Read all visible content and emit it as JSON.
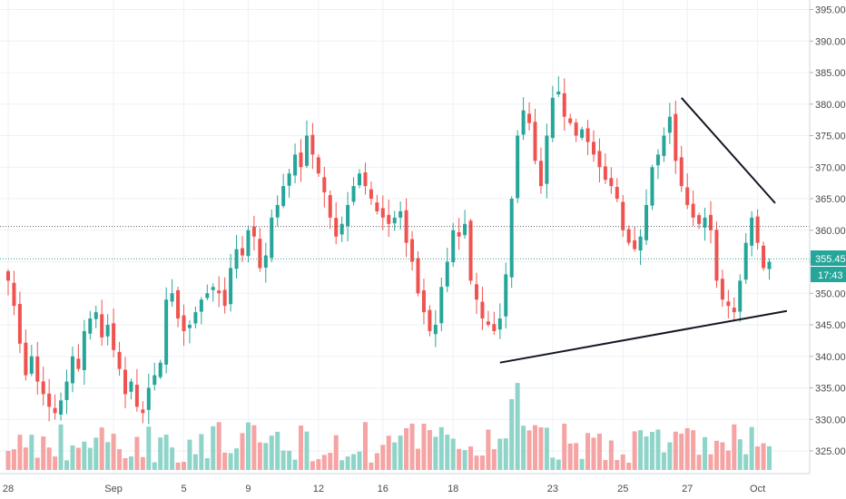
{
  "chart_data": {
    "type": "candlestick",
    "x_tick_labels": [
      "28",
      "Sep",
      "5",
      "9",
      "12",
      "16",
      "18",
      "23",
      "25",
      "27",
      "Oct"
    ],
    "y_ticks": [
      325,
      330,
      335,
      340,
      345,
      350,
      355,
      360,
      365,
      370,
      375,
      380,
      385,
      390,
      395
    ],
    "y_tick_labels": [
      "325.00",
      "330.00",
      "335.00",
      "340.00",
      "345.00",
      "350.00",
      "355.00",
      "360.00",
      "365.00",
      "370.00",
      "375.00",
      "380.00",
      "385.00",
      "390.00",
      "395.00"
    ],
    "ylim": [
      321.5,
      397
    ],
    "grid": true,
    "last_price": 355.45,
    "last_price_label": "355.45",
    "countdown_label": "17:43",
    "reference_level": 360.6,
    "colors": {
      "up": "#26a69a",
      "down": "#ef5350",
      "up_volume": "#8fd4c8",
      "down_volume": "#f5a3a3",
      "price_line": "#26a69a",
      "grid": "#eef0f3",
      "trendline": "#131722"
    },
    "trendlines": [
      {
        "name": "support",
        "from": {
          "bar": 84,
          "price": 339.0
        },
        "to": {
          "bar": 133,
          "price": 347.2
        }
      },
      {
        "name": "resistance",
        "from": {
          "bar": 115,
          "price": 381.0
        },
        "to": {
          "bar": 131,
          "price": 364.3
        }
      }
    ],
    "closes": [
      352,
      348,
      342,
      337,
      340,
      336,
      334,
      332,
      331,
      333,
      336,
      340,
      338,
      344,
      346,
      347,
      343,
      345,
      341,
      338,
      334,
      336,
      332,
      331,
      335,
      337,
      339,
      349,
      350,
      346,
      344,
      345,
      347,
      349,
      350,
      351,
      350,
      348,
      354,
      357,
      356,
      360,
      359,
      354,
      356,
      362,
      364,
      367,
      369,
      372,
      370,
      375,
      372,
      369,
      366,
      362,
      359,
      361,
      364,
      367,
      369,
      367,
      365,
      363,
      362,
      361,
      362,
      363,
      358,
      355,
      350,
      347,
      344,
      345,
      351,
      355,
      360,
      359,
      361,
      352,
      349,
      346,
      345,
      344,
      346,
      353,
      365,
      375,
      379,
      377,
      371,
      367,
      375,
      381,
      382,
      378,
      377,
      375,
      376,
      374,
      372,
      370,
      368,
      367,
      365,
      360,
      358,
      357,
      359,
      364,
      370,
      372,
      375,
      378,
      371,
      367,
      364,
      362,
      361,
      362,
      360,
      352,
      349,
      348,
      347,
      352,
      358,
      362,
      358,
      354,
      355
    ]
  },
  "labels": {
    "price_badge": "355.45",
    "time_badge": "17:43"
  }
}
